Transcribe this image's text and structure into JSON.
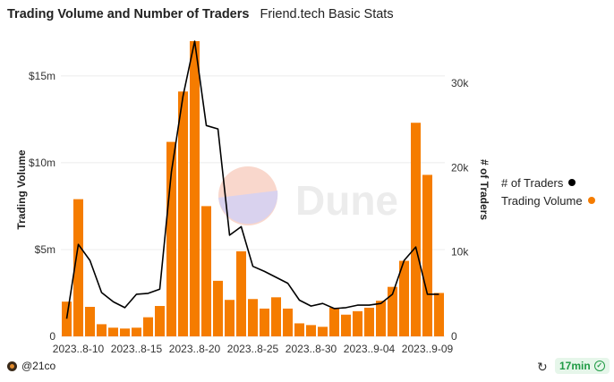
{
  "header": {
    "title": "Trading Volume and Number of Traders",
    "subtitle": "Friend.tech Basic Stats"
  },
  "watermark": "Dune",
  "footer": {
    "author": "@21co",
    "age_badge": "17min",
    "refresh_icon": "refresh-icon",
    "check_icon": "check-circle-icon"
  },
  "colors": {
    "bar": "#f57c00",
    "line": "#000000",
    "badge_text": "#1f9a44"
  },
  "chart_data": {
    "type": "bar+line",
    "title": "Trading Volume and Number of Traders",
    "xlabel": "",
    "ylabel": "Trading Volume",
    "y2label": "# of Traders",
    "ylim": [
      0,
      17000000
    ],
    "y2lim": [
      0,
      35000
    ],
    "yticks": [
      0,
      5000000,
      10000000,
      15000000
    ],
    "ytick_labels": [
      "0",
      "$5m",
      "$10m",
      "$15m"
    ],
    "y2ticks": [
      0,
      10000,
      20000,
      30000
    ],
    "y2tick_labels": [
      "0",
      "10k",
      "20k",
      "30k"
    ],
    "xtick_labels": [
      "2023..8-10",
      "2023..8-15",
      "2023..8-20",
      "2023..8-25",
      "2023..8-30",
      "2023..9-04",
      "2023..9-09"
    ],
    "xtick_indices": [
      1,
      6,
      11,
      16,
      21,
      26,
      31
    ],
    "categories": [
      "2023-08-09",
      "2023-08-10",
      "2023-08-11",
      "2023-08-12",
      "2023-08-13",
      "2023-08-14",
      "2023-08-15",
      "2023-08-16",
      "2023-08-17",
      "2023-08-18",
      "2023-08-19",
      "2023-08-20",
      "2023-08-21",
      "2023-08-22",
      "2023-08-23",
      "2023-08-24",
      "2023-08-25",
      "2023-08-26",
      "2023-08-27",
      "2023-08-28",
      "2023-08-29",
      "2023-08-30",
      "2023-08-31",
      "2023-09-01",
      "2023-09-02",
      "2023-09-03",
      "2023-09-04",
      "2023-09-05",
      "2023-09-06",
      "2023-09-07",
      "2023-09-08",
      "2023-09-09",
      "2023-09-10"
    ],
    "series": [
      {
        "name": "Trading Volume",
        "type": "bar",
        "axis": "left",
        "color": "#f57c00",
        "values": [
          2000000,
          7900000,
          1700000,
          700000,
          500000,
          450000,
          500000,
          1100000,
          1750000,
          11200000,
          14100000,
          17000000,
          7500000,
          3200000,
          2100000,
          4900000,
          2150000,
          1600000,
          2250000,
          1600000,
          750000,
          650000,
          550000,
          1650000,
          1250000,
          1450000,
          1650000,
          2050000,
          2850000,
          4350000,
          12300000,
          9300000,
          2500000
        ]
      },
      {
        "name": "# of Traders",
        "type": "line",
        "axis": "right",
        "color": "#000000",
        "values": [
          2100,
          10900,
          9000,
          5200,
          4100,
          3400,
          5000,
          5100,
          5600,
          19500,
          28500,
          35000,
          25000,
          24600,
          12000,
          13000,
          8300,
          7700,
          7000,
          6300,
          4300,
          3600,
          3900,
          3300,
          3400,
          3700,
          3700,
          3900,
          5000,
          9000,
          10600,
          5000,
          5000
        ]
      }
    ],
    "legend": [
      {
        "label": "# of Traders",
        "color": "#000000"
      },
      {
        "label": "Trading Volume",
        "color": "#f57c00"
      }
    ],
    "legend_position": "right",
    "grid": true
  }
}
